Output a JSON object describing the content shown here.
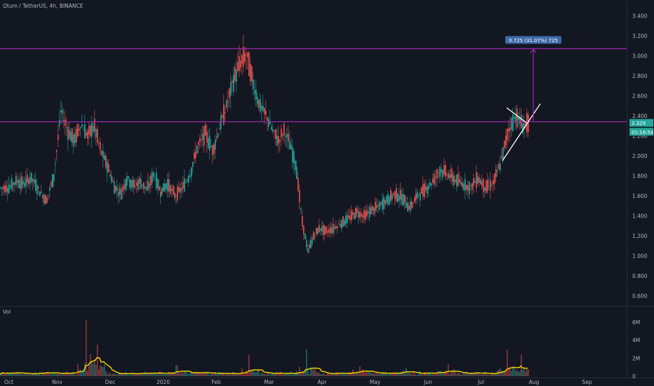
{
  "header": {
    "symbol_title": "Qtum / TetherUS, 4h, BINANCE"
  },
  "volume_pane": {
    "label": "Vol"
  },
  "colors": {
    "background": "#131722",
    "up": "#26a69a",
    "down": "#ef5350",
    "purple": "#9c27b0",
    "volume_ma": "#f5d400",
    "grid_text": "#b2b5be",
    "measure_label_bg": "#3d6aa8"
  },
  "chart_data": [
    {
      "type": "candlestick",
      "title": "Qtum / TetherUS, 4h, BINANCE",
      "x_tick_labels": [
        "Oct",
        "Nov",
        "Dec",
        "2020",
        "Feb",
        "Mar",
        "Apr",
        "May",
        "Jun",
        "Jul",
        "Aug",
        "Sep"
      ],
      "y_tick_labels": [
        "0.600",
        "0.800",
        "1.000",
        "1.200",
        "1.400",
        "1.600",
        "1.800",
        "2.000",
        "2.200",
        "2.400",
        "2.600",
        "2.800",
        "3.000",
        "3.200",
        "3.400"
      ],
      "ylim": [
        0.5,
        3.5
      ],
      "price_path": [
        [
          "Oct",
          1.68
        ],
        [
          "Oct",
          1.75
        ],
        [
          "Oct",
          1.72
        ],
        [
          "Oct",
          1.78
        ],
        [
          "Oct",
          1.66
        ],
        [
          "Oct",
          1.55
        ],
        [
          "Oct",
          1.8
        ],
        [
          "Nov",
          2.45
        ],
        [
          "Nov",
          2.25
        ],
        [
          "Nov",
          2.15
        ],
        [
          "Nov",
          2.32
        ],
        [
          "Nov",
          2.2
        ],
        [
          "Nov",
          2.3
        ],
        [
          "Nov",
          2.05
        ],
        [
          "Nov",
          1.9
        ],
        [
          "Dec",
          1.7
        ],
        [
          "Dec",
          1.62
        ],
        [
          "Dec",
          1.78
        ],
        [
          "Dec",
          1.7
        ],
        [
          "Dec",
          1.74
        ],
        [
          "Dec",
          1.66
        ],
        [
          "Dec",
          1.82
        ],
        [
          "Dec",
          1.64
        ],
        [
          "2020",
          1.72
        ],
        [
          "2020",
          1.6
        ],
        [
          "2020",
          1.68
        ],
        [
          "2020",
          1.82
        ],
        [
          "2020",
          2.1
        ],
        [
          "2020",
          2.22
        ],
        [
          "2020",
          2.05
        ],
        [
          "Feb",
          2.3
        ],
        [
          "Feb",
          2.5
        ],
        [
          "Feb",
          2.75
        ],
        [
          "Feb",
          2.92
        ],
        [
          "Feb",
          3.02
        ],
        [
          "Feb",
          2.72
        ],
        [
          "Feb",
          2.5
        ],
        [
          "Feb",
          2.4
        ],
        [
          "Mar",
          2.25
        ],
        [
          "Mar",
          2.15
        ],
        [
          "Mar",
          2.25
        ],
        [
          "Mar",
          2.1
        ],
        [
          "Mar",
          1.9
        ],
        [
          "Mar",
          1.35
        ],
        [
          "Mar",
          1.05
        ],
        [
          "Mar",
          1.2
        ],
        [
          "Mar",
          1.28
        ],
        [
          "Apr",
          1.24
        ],
        [
          "Apr",
          1.28
        ],
        [
          "Apr",
          1.33
        ],
        [
          "Apr",
          1.38
        ],
        [
          "Apr",
          1.44
        ],
        [
          "Apr",
          1.4
        ],
        [
          "Apr",
          1.46
        ],
        [
          "May",
          1.5
        ],
        [
          "May",
          1.56
        ],
        [
          "May",
          1.62
        ],
        [
          "May",
          1.58
        ],
        [
          "May",
          1.48
        ],
        [
          "May",
          1.6
        ],
        [
          "May",
          1.66
        ],
        [
          "Jun",
          1.74
        ],
        [
          "Jun",
          1.86
        ],
        [
          "Jun",
          1.82
        ],
        [
          "Jun",
          1.76
        ],
        [
          "Jun",
          1.72
        ],
        [
          "Jun",
          1.68
        ],
        [
          "Jun",
          1.78
        ],
        [
          "Jul",
          1.68
        ],
        [
          "Jul",
          1.72
        ],
        [
          "Jul",
          1.92
        ],
        [
          "Jul",
          2.25
        ],
        [
          "Jul",
          2.4
        ],
        [
          "Jul",
          2.3
        ],
        [
          "Jul",
          2.33
        ]
      ],
      "horizontal_lines": [
        3.07,
        2.34
      ],
      "measurement": {
        "label": "0.725 (31.07%) 725",
        "from": 2.34,
        "to": 3.07
      },
      "triangle_pattern": {
        "apex_price": 2.33,
        "upper_start": 2.48,
        "lower_start": 1.95,
        "breakout_target": 2.52
      },
      "price_labels": [
        {
          "text": "2.329",
          "value": 2.329
        },
        {
          "text": "01:16:54",
          "value": 2.24
        }
      ]
    },
    {
      "type": "bar",
      "title": "Vol",
      "y_tick_labels": [
        "0",
        "2M",
        "4M",
        "6M"
      ],
      "ylim": [
        0,
        7000000
      ],
      "moving_average": "yellow",
      "spikes": [
        [
          "Nov",
          6200000
        ],
        [
          "Nov",
          3500000
        ],
        [
          "2020",
          1200000
        ],
        [
          "Feb",
          2400000
        ],
        [
          "Mar",
          3000000
        ],
        [
          "Apr",
          1100000
        ],
        [
          "May",
          900000
        ],
        [
          "Jun",
          1300000
        ],
        [
          "Jul",
          2900000
        ],
        [
          "Jul",
          2400000
        ]
      ]
    }
  ]
}
